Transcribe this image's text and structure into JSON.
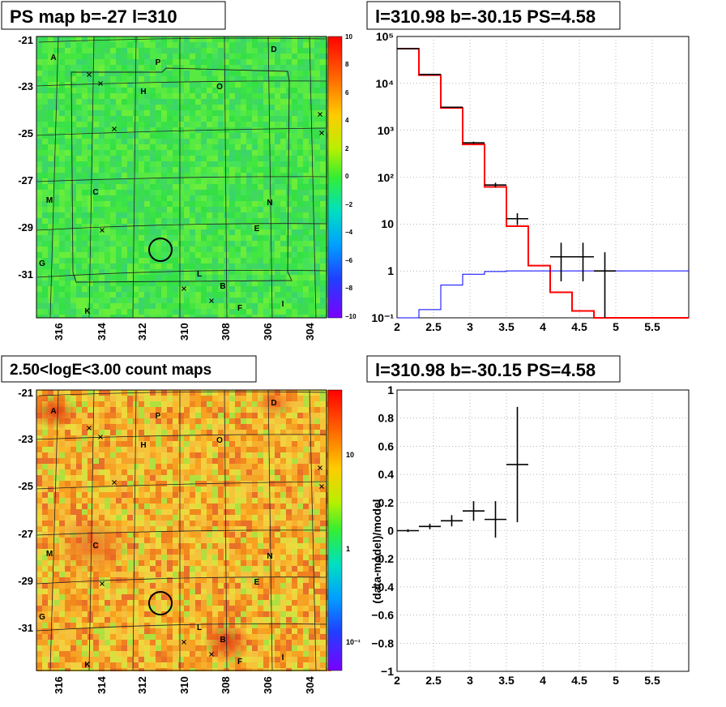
{
  "panels": {
    "ps_map": {
      "title": "PS map b=-27 l=310",
      "y_ticks": [
        "-21",
        "-23",
        "-25",
        "-27",
        "-29",
        "-31"
      ],
      "x_ticks": [
        "316",
        "314",
        "312",
        "310",
        "308",
        "306",
        "304"
      ],
      "colorbar_ticks": [
        "10",
        "8",
        "6",
        "4",
        "2",
        "0",
        "−2",
        "−4",
        "−6",
        "−8",
        "−10"
      ],
      "colorbar_range": [
        -10,
        10
      ]
    },
    "count_map": {
      "title": "2.50<logE<3.00 count maps",
      "y_ticks": [
        "-21",
        "-23",
        "-25",
        "-27",
        "-29",
        "-31"
      ],
      "x_ticks": [
        "316",
        "314",
        "312",
        "310",
        "308",
        "306",
        "304"
      ],
      "colorbar_ticks": [
        "10",
        "1",
        "10⁻¹"
      ],
      "colorbar_scale": "log"
    },
    "spectrum": {
      "title": "l=310.98 b=-30.15 PS=4.58",
      "x_ticks": [
        "2",
        "2.5",
        "3",
        "3.5",
        "4",
        "4.5",
        "5",
        "5.5"
      ],
      "y_ticks": [
        "10⁻¹",
        "1",
        "10",
        "10²",
        "10³",
        "10⁴",
        "10⁵"
      ]
    },
    "residual": {
      "title": "l=310.98 b=-30.15 PS=4.58",
      "x_ticks": [
        "2",
        "2.5",
        "3",
        "3.5",
        "4",
        "4.5",
        "5",
        "5.5"
      ],
      "y_ticks": [
        "1",
        "0.8",
        "0.6",
        "0.4",
        "0.2",
        "0",
        "−0.2",
        "−0.4",
        "−0.6",
        "−0.8",
        "−1"
      ],
      "ylabel": "(data-model)/model"
    }
  },
  "map_labels": [
    "A",
    "P",
    "D",
    "H",
    "O",
    "M",
    "C",
    "N",
    "E",
    "G",
    "L",
    "B",
    "F",
    "I",
    "K"
  ],
  "colors": {
    "data": "#000000",
    "model": "#ff0000",
    "background_model": "#0000ff"
  },
  "chart_data": [
    {
      "type": "heatmap",
      "title": "PS map b=-27 l=310",
      "xlabel": "",
      "ylabel": "",
      "xlim": [
        317,
        303
      ],
      "ylim": [
        -33,
        -20.6
      ],
      "zlim": [
        -10,
        10
      ],
      "candidate": {
        "l": 310.98,
        "b": -30.15
      }
    },
    {
      "type": "heatmap",
      "title": "2.50<logE<3.00 count maps",
      "xlabel": "",
      "ylabel": "",
      "xlim": [
        317,
        303
      ],
      "ylim": [
        -33,
        -20.6
      ],
      "zscale": "log",
      "candidate": {
        "l": 310.98,
        "b": -30.15
      }
    },
    {
      "type": "line",
      "title": "l=310.98 b=-30.15 PS=4.58",
      "xlim": [
        2,
        6
      ],
      "ylim": [
        0.1,
        100000
      ],
      "yscale": "log",
      "grid": true,
      "bin_edges": [
        2.0,
        2.3,
        2.6,
        2.9,
        3.2,
        3.5,
        3.8,
        4.1,
        4.4,
        4.7,
        5.0,
        6.0
      ],
      "series": [
        {
          "name": "model",
          "color": "#ff0000",
          "values": [
            55000,
            15000,
            3000,
            500,
            62,
            9,
            1.3,
            0.35,
            0.14,
            0.1,
            0.1
          ]
        },
        {
          "name": "background",
          "color": "#0000ff",
          "values": [
            0.09,
            0.15,
            0.5,
            0.85,
            0.97,
            1.0,
            1.0,
            1.0,
            1.0,
            1.0,
            1.0
          ]
        },
        {
          "name": "data",
          "color": "#000000",
          "type": "errorbar",
          "points": [
            {
              "x": 2.15,
              "y": 55000,
              "lo": 54000,
              "hi": 56000
            },
            {
              "x": 2.45,
              "y": 15500,
              "lo": 15000,
              "hi": 16000
            },
            {
              "x": 2.75,
              "y": 3100,
              "lo": 3000,
              "hi": 3200
            },
            {
              "x": 3.05,
              "y": 540,
              "lo": 510,
              "hi": 570
            },
            {
              "x": 3.35,
              "y": 68,
              "lo": 60,
              "hi": 76
            },
            {
              "x": 3.65,
              "y": 13,
              "lo": 9.5,
              "hi": 17
            },
            {
              "x": 4.25,
              "y": 2,
              "lo": 0.6,
              "hi": 4
            },
            {
              "x": 4.55,
              "y": 2,
              "lo": 0.6,
              "hi": 4
            },
            {
              "x": 4.85,
              "y": 1,
              "lo": 0.1,
              "hi": 2.5
            }
          ]
        }
      ]
    },
    {
      "type": "scatter",
      "title": "l=310.98 b=-30.15 PS=4.58",
      "xlabel": "",
      "ylabel": "(data-model)/model",
      "xlim": [
        2,
        6
      ],
      "ylim": [
        -1,
        1
      ],
      "grid": true,
      "points": [
        {
          "x": 2.15,
          "y": 0.0,
          "xerr": 0.15,
          "yerr": 0.01
        },
        {
          "x": 2.45,
          "y": 0.03,
          "xerr": 0.15,
          "yerr": 0.02
        },
        {
          "x": 2.75,
          "y": 0.07,
          "xerr": 0.15,
          "yerr": 0.04
        },
        {
          "x": 3.05,
          "y": 0.14,
          "xerr": 0.15,
          "yerr": 0.07
        },
        {
          "x": 3.35,
          "y": 0.08,
          "xerr": 0.15,
          "yerr": 0.13
        },
        {
          "x": 3.65,
          "y": 0.47,
          "xerr": 0.15,
          "yerr": 0.41
        }
      ]
    }
  ]
}
